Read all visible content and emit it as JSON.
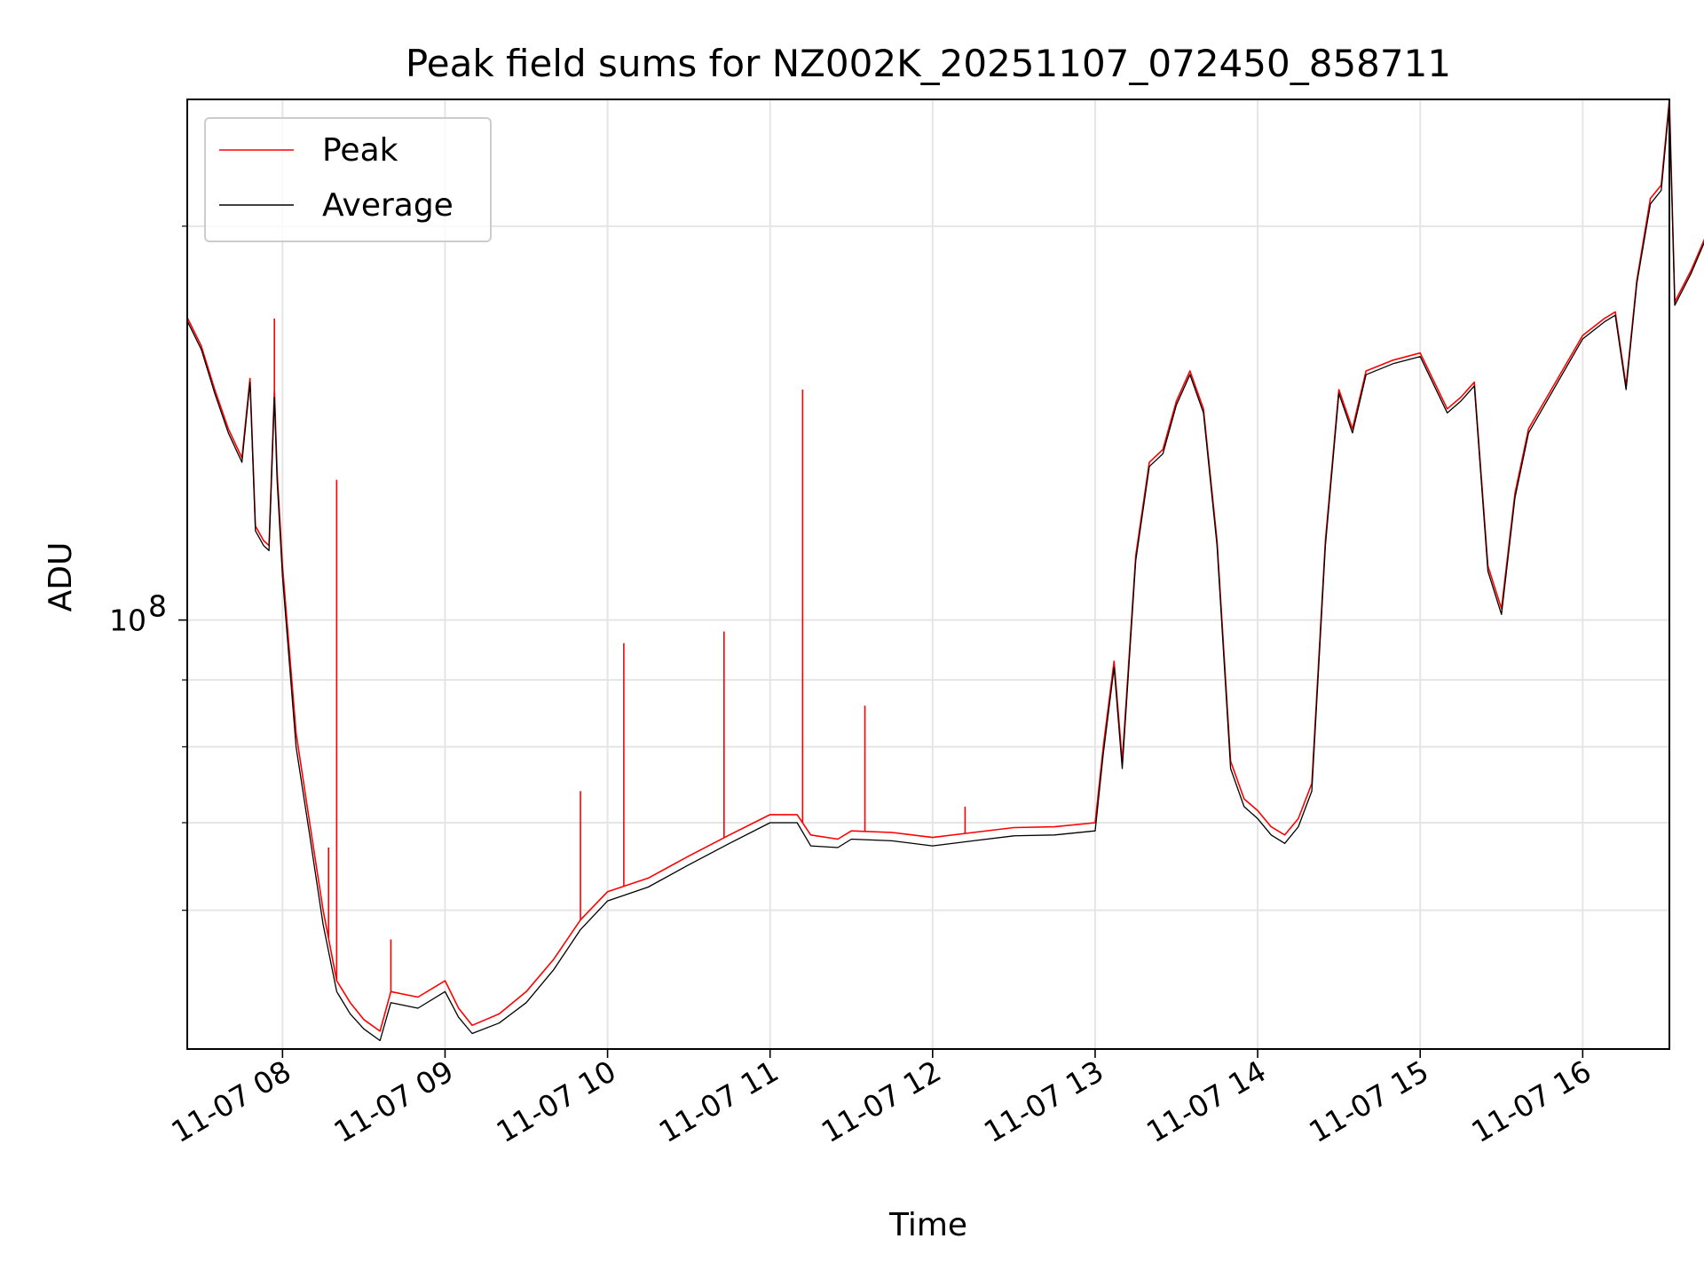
{
  "chart_data": {
    "type": "line",
    "title": "Peak field sums for NZ002K_20251107_072450_858711",
    "xlabel": "Time",
    "ylabel": "ADU",
    "y_scale": "log",
    "grid": true,
    "legend_position": "top-left",
    "xlim": [
      "2025-11-07 07:24:50",
      "2025-11-07 16:32"
    ],
    "ylim": [
      47000000,
      250000000
    ],
    "x_ticks": [
      {
        "value": "2025-11-07 08:00",
        "label": "11-07 08"
      },
      {
        "value": "2025-11-07 09:00",
        "label": "11-07 09"
      },
      {
        "value": "2025-11-07 10:00",
        "label": "11-07 10"
      },
      {
        "value": "2025-11-07 11:00",
        "label": "11-07 11"
      },
      {
        "value": "2025-11-07 12:00",
        "label": "11-07 12"
      },
      {
        "value": "2025-11-07 13:00",
        "label": "11-07 13"
      },
      {
        "value": "2025-11-07 14:00",
        "label": "11-07 14"
      },
      {
        "value": "2025-11-07 15:00",
        "label": "11-07 15"
      },
      {
        "value": "2025-11-07 16:00",
        "label": "11-07 16"
      }
    ],
    "y_major_ticks": [
      {
        "value": 100000000,
        "base": "10",
        "exponent": "8"
      }
    ],
    "y_minor_ticks": [
      60000000,
      70000000,
      80000000,
      90000000,
      200000000
    ],
    "series": [
      {
        "name": "Peak",
        "color": "#ff0000",
        "points": [
          [
            "2025-11-07 07:25",
            170000000
          ],
          [
            "2025-11-07 07:30",
            162000000
          ],
          [
            "2025-11-07 07:35",
            150000000
          ],
          [
            "2025-11-07 07:40",
            140000000
          ],
          [
            "2025-11-07 07:45",
            133000000
          ],
          [
            "2025-11-07 07:48",
            153000000
          ],
          [
            "2025-11-07 07:50",
            118000000
          ],
          [
            "2025-11-07 07:53",
            115000000
          ],
          [
            "2025-11-07 07:55",
            114000000
          ],
          [
            "2025-11-07 07:57",
            150000000
          ],
          [
            "2025-11-07 07:58",
            130000000
          ],
          [
            "2025-11-07 08:00",
            110000000
          ],
          [
            "2025-11-07 08:05",
            82000000
          ],
          [
            "2025-11-07 08:10",
            70000000
          ],
          [
            "2025-11-07 08:15",
            60000000
          ],
          [
            "2025-11-07 08:20",
            53000000
          ],
          [
            "2025-11-07 08:25",
            51000000
          ],
          [
            "2025-11-07 08:30",
            49500000
          ],
          [
            "2025-11-07 08:36",
            48500000
          ],
          [
            "2025-11-07 08:40",
            52000000
          ],
          [
            "2025-11-07 08:50",
            51500000
          ],
          [
            "2025-11-07 09:00",
            53000000
          ],
          [
            "2025-11-07 09:05",
            50500000
          ],
          [
            "2025-11-07 09:10",
            49000000
          ],
          [
            "2025-11-07 09:20",
            50000000
          ],
          [
            "2025-11-07 09:30",
            52000000
          ],
          [
            "2025-11-07 09:40",
            55000000
          ],
          [
            "2025-11-07 09:50",
            59000000
          ],
          [
            "2025-11-07 10:00",
            62000000
          ],
          [
            "2025-11-07 10:15",
            63500000
          ],
          [
            "2025-11-07 10:30",
            66000000
          ],
          [
            "2025-11-07 10:45",
            68500000
          ],
          [
            "2025-11-07 11:00",
            71000000
          ],
          [
            "2025-11-07 11:10",
            71000000
          ],
          [
            "2025-11-07 11:15",
            68500000
          ],
          [
            "2025-11-07 11:25",
            68000000
          ],
          [
            "2025-11-07 11:30",
            69000000
          ],
          [
            "2025-11-07 11:45",
            68800000
          ],
          [
            "2025-11-07 12:00",
            68200000
          ],
          [
            "2025-11-07 12:15",
            68800000
          ],
          [
            "2025-11-07 12:30",
            69400000
          ],
          [
            "2025-11-07 12:45",
            69500000
          ],
          [
            "2025-11-07 13:00",
            70000000
          ],
          [
            "2025-11-07 13:03",
            80000000
          ],
          [
            "2025-11-07 13:07",
            93000000
          ],
          [
            "2025-11-07 13:10",
            78000000
          ],
          [
            "2025-11-07 13:15",
            112000000
          ],
          [
            "2025-11-07 13:20",
            132000000
          ],
          [
            "2025-11-07 13:25",
            135000000
          ],
          [
            "2025-11-07 13:30",
            147000000
          ],
          [
            "2025-11-07 13:35",
            155000000
          ],
          [
            "2025-11-07 13:40",
            145000000
          ],
          [
            "2025-11-07 13:45",
            115000000
          ],
          [
            "2025-11-07 13:50",
            78000000
          ],
          [
            "2025-11-07 13:55",
            73000000
          ],
          [
            "2025-11-07 14:00",
            71500000
          ],
          [
            "2025-11-07 14:05",
            69500000
          ],
          [
            "2025-11-07 14:10",
            68500000
          ],
          [
            "2025-11-07 14:15",
            70500000
          ],
          [
            "2025-11-07 14:20",
            75000000
          ],
          [
            "2025-11-07 14:25",
            115000000
          ],
          [
            "2025-11-07 14:30",
            150000000
          ],
          [
            "2025-11-07 14:35",
            140000000
          ],
          [
            "2025-11-07 14:40",
            155000000
          ],
          [
            "2025-11-07 14:50",
            158000000
          ],
          [
            "2025-11-07 15:00",
            160000000
          ],
          [
            "2025-11-07 15:10",
            145000000
          ],
          [
            "2025-11-07 15:15",
            148000000
          ],
          [
            "2025-11-07 15:20",
            152000000
          ],
          [
            "2025-11-07 15:25",
            110000000
          ],
          [
            "2025-11-07 15:30",
            102000000
          ],
          [
            "2025-11-07 15:35",
            125000000
          ],
          [
            "2025-11-07 15:40",
            140000000
          ],
          [
            "2025-11-07 15:50",
            152000000
          ],
          [
            "2025-11-07 16:00",
            165000000
          ],
          [
            "2025-11-07 16:08",
            170000000
          ],
          [
            "2025-11-07 16:12",
            172000000
          ],
          [
            "2025-11-07 16:16",
            151000000
          ],
          [
            "2025-11-07 16:20",
            182000000
          ],
          [
            "2025-11-07 16:25",
            210000000
          ],
          [
            "2025-11-07 16:29",
            215000000
          ],
          [
            "2025-11-07 16:32",
            250000000
          ],
          [
            "2025-11-07 16:34",
            175000000
          ],
          [
            "2025-11-07 16:40",
            185000000
          ],
          [
            "2025-11-07 16:47",
            200000000
          ]
        ]
      },
      {
        "name": "Average",
        "color": "#000000",
        "points": [
          [
            "2025-11-07 07:25",
            169000000
          ],
          [
            "2025-11-07 07:30",
            161000000
          ],
          [
            "2025-11-07 07:35",
            149000000
          ],
          [
            "2025-11-07 07:40",
            139000000
          ],
          [
            "2025-11-07 07:45",
            132000000
          ],
          [
            "2025-11-07 07:48",
            152000000
          ],
          [
            "2025-11-07 07:50",
            117000000
          ],
          [
            "2025-11-07 07:53",
            114000000
          ],
          [
            "2025-11-07 07:55",
            113000000
          ],
          [
            "2025-11-07 07:57",
            148000000
          ],
          [
            "2025-11-07 07:58",
            128000000
          ],
          [
            "2025-11-07 08:00",
            108000000
          ],
          [
            "2025-11-07 08:05",
            80000000
          ],
          [
            "2025-11-07 08:10",
            68500000
          ],
          [
            "2025-11-07 08:15",
            58500000
          ],
          [
            "2025-11-07 08:20",
            52000000
          ],
          [
            "2025-11-07 08:25",
            50000000
          ],
          [
            "2025-11-07 08:30",
            48700000
          ],
          [
            "2025-11-07 08:36",
            47700000
          ],
          [
            "2025-11-07 08:40",
            51000000
          ],
          [
            "2025-11-07 08:50",
            50500000
          ],
          [
            "2025-11-07 09:00",
            52000000
          ],
          [
            "2025-11-07 09:05",
            49700000
          ],
          [
            "2025-11-07 09:10",
            48300000
          ],
          [
            "2025-11-07 09:20",
            49200000
          ],
          [
            "2025-11-07 09:30",
            51000000
          ],
          [
            "2025-11-07 09:40",
            54000000
          ],
          [
            "2025-11-07 09:50",
            58000000
          ],
          [
            "2025-11-07 10:00",
            61000000
          ],
          [
            "2025-11-07 10:15",
            62500000
          ],
          [
            "2025-11-07 10:30",
            65000000
          ],
          [
            "2025-11-07 10:45",
            67500000
          ],
          [
            "2025-11-07 11:00",
            70000000
          ],
          [
            "2025-11-07 11:10",
            70000000
          ],
          [
            "2025-11-07 11:15",
            67200000
          ],
          [
            "2025-11-07 11:25",
            67000000
          ],
          [
            "2025-11-07 11:30",
            68000000
          ],
          [
            "2025-11-07 11:45",
            67800000
          ],
          [
            "2025-11-07 12:00",
            67200000
          ],
          [
            "2025-11-07 12:15",
            67800000
          ],
          [
            "2025-11-07 12:30",
            68400000
          ],
          [
            "2025-11-07 12:45",
            68500000
          ],
          [
            "2025-11-07 13:00",
            69000000
          ],
          [
            "2025-11-07 13:03",
            79000000
          ],
          [
            "2025-11-07 13:07",
            92000000
          ],
          [
            "2025-11-07 13:10",
            77000000
          ],
          [
            "2025-11-07 13:15",
            111000000
          ],
          [
            "2025-11-07 13:20",
            131000000
          ],
          [
            "2025-11-07 13:25",
            134000000
          ],
          [
            "2025-11-07 13:30",
            146000000
          ],
          [
            "2025-11-07 13:35",
            154000000
          ],
          [
            "2025-11-07 13:40",
            144000000
          ],
          [
            "2025-11-07 13:45",
            114000000
          ],
          [
            "2025-11-07 13:50",
            77000000
          ],
          [
            "2025-11-07 13:55",
            72000000
          ],
          [
            "2025-11-07 14:00",
            70500000
          ],
          [
            "2025-11-07 14:05",
            68500000
          ],
          [
            "2025-11-07 14:10",
            67500000
          ],
          [
            "2025-11-07 14:15",
            69500000
          ],
          [
            "2025-11-07 14:20",
            74000000
          ],
          [
            "2025-11-07 14:25",
            114000000
          ],
          [
            "2025-11-07 14:30",
            149000000
          ],
          [
            "2025-11-07 14:35",
            139000000
          ],
          [
            "2025-11-07 14:40",
            154000000
          ],
          [
            "2025-11-07 14:50",
            157000000
          ],
          [
            "2025-11-07 15:00",
            159000000
          ],
          [
            "2025-11-07 15:10",
            144000000
          ],
          [
            "2025-11-07 15:15",
            147000000
          ],
          [
            "2025-11-07 15:20",
            151000000
          ],
          [
            "2025-11-07 15:25",
            109000000
          ],
          [
            "2025-11-07 15:30",
            101000000
          ],
          [
            "2025-11-07 15:35",
            124000000
          ],
          [
            "2025-11-07 15:40",
            139000000
          ],
          [
            "2025-11-07 15:50",
            151000000
          ],
          [
            "2025-11-07 16:00",
            164000000
          ],
          [
            "2025-11-07 16:08",
            169000000
          ],
          [
            "2025-11-07 16:12",
            171000000
          ],
          [
            "2025-11-07 16:16",
            150000000
          ],
          [
            "2025-11-07 16:20",
            181000000
          ],
          [
            "2025-11-07 16:25",
            208000000
          ],
          [
            "2025-11-07 16:29",
            213000000
          ],
          [
            "2025-11-07 16:32",
            248000000
          ],
          [
            "2025-11-07 16:34",
            174000000
          ],
          [
            "2025-11-07 16:40",
            184000000
          ],
          [
            "2025-11-07 16:47",
            199000000
          ]
        ]
      }
    ],
    "spikes": [
      {
        "series": "Peak",
        "time": "2025-11-07 07:57",
        "value": 170000000
      },
      {
        "series": "Peak",
        "time": "2025-11-07 08:17",
        "value": 67000000
      },
      {
        "series": "Peak",
        "time": "2025-11-07 08:20",
        "value": 128000000
      },
      {
        "series": "Peak",
        "time": "2025-11-07 08:40",
        "value": 57000000
      },
      {
        "series": "Peak",
        "time": "2025-11-07 09:50",
        "value": 74000000
      },
      {
        "series": "Peak",
        "time": "2025-11-07 10:06",
        "value": 96000000
      },
      {
        "series": "Peak",
        "time": "2025-11-07 10:43",
        "value": 98000000
      },
      {
        "series": "Peak",
        "time": "2025-11-07 11:12",
        "value": 150000000
      },
      {
        "series": "Peak",
        "time": "2025-11-07 11:35",
        "value": 86000000
      },
      {
        "series": "Peak",
        "time": "2025-11-07 12:12",
        "value": 72000000
      }
    ]
  }
}
